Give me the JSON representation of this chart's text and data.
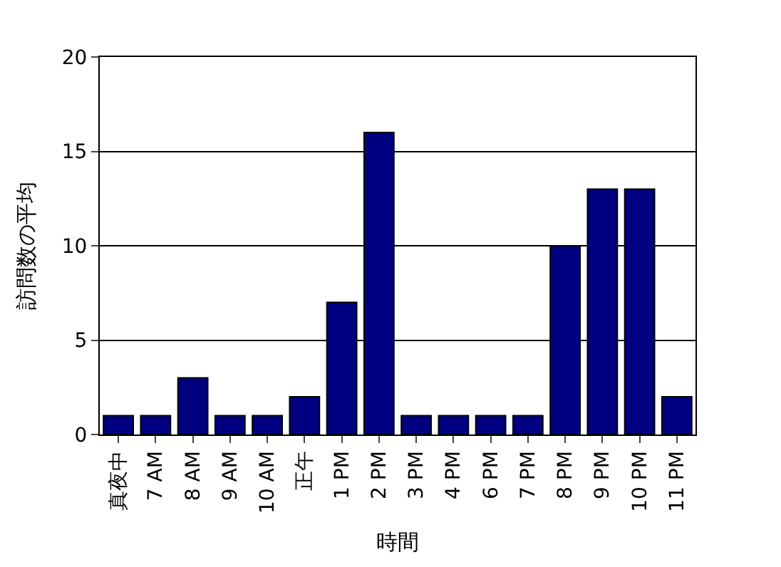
{
  "chart_data": {
    "type": "bar",
    "xlabel": "時間",
    "ylabel": "訪問数の平均",
    "categories": [
      "真夜中",
      "7 AM",
      "8 AM",
      "9 AM",
      "10 AM",
      "正午",
      "1 PM",
      "2 PM",
      "3 PM",
      "4 PM",
      "6 PM",
      "7 PM",
      "8 PM",
      "9 PM",
      "10 PM",
      "11 PM"
    ],
    "values": [
      1,
      1,
      3,
      1,
      1,
      2,
      7,
      16,
      1,
      1,
      1,
      1,
      10,
      13,
      13,
      2
    ],
    "color": "#000080",
    "ylim": [
      0,
      20
    ],
    "yticks": [
      0,
      5,
      10,
      15,
      20
    ],
    "grid": "y"
  }
}
